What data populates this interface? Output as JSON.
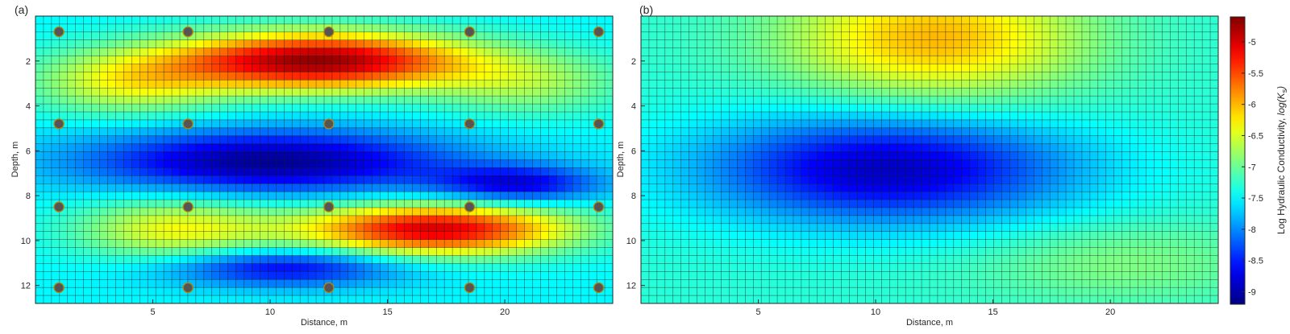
{
  "chart_data": [
    {
      "type": "heatmap",
      "panel_label": "(a)",
      "xlabel": "Distance, m",
      "ylabel": "Depth, m",
      "xlim": [
        0,
        24.6
      ],
      "ylim": [
        12.8,
        0
      ],
      "xticks": [
        5,
        10,
        15,
        20
      ],
      "yticks": [
        2,
        4,
        6,
        8,
        10,
        12
      ],
      "grid": true,
      "colormap": "jet",
      "field": {
        "background": -7.5,
        "components": [
          {
            "kind": "high",
            "x": 12.0,
            "y": 2.0,
            "peak": -4.7,
            "sx": 4.5,
            "sy": 0.9
          },
          {
            "kind": "high",
            "x": 17.0,
            "y": 9.5,
            "peak": -5.0,
            "sx": 4.0,
            "sy": 0.8
          },
          {
            "kind": "low",
            "x": 10.0,
            "y": 6.5,
            "peak": -9.1,
            "sx": 5.5,
            "sy": 1.0
          },
          {
            "kind": "low",
            "x": 20.5,
            "y": 7.5,
            "peak": -8.7,
            "sx": 2.5,
            "sy": 0.6
          },
          {
            "kind": "low",
            "x": 10.5,
            "y": 11.2,
            "peak": -8.7,
            "sx": 3.5,
            "sy": 0.6
          },
          {
            "kind": "mid",
            "x": 6.0,
            "y": 9.5,
            "peak": -6.4,
            "sx": 3.0,
            "sy": 1.0
          },
          {
            "kind": "mid",
            "x": 4.0,
            "y": 3.0,
            "peak": -6.5,
            "sx": 3.0,
            "sy": 1.0
          },
          {
            "kind": "mid",
            "x": 21.0,
            "y": 3.0,
            "peak": -6.8,
            "sx": 3.0,
            "sy": 1.0
          }
        ]
      },
      "sensor_points": {
        "x": [
          1.0,
          6.5,
          12.5,
          18.5,
          24.0
        ],
        "y": [
          0.7,
          4.8,
          8.5,
          12.1
        ],
        "fill": "#555555",
        "edge": "#b8860b"
      }
    },
    {
      "type": "heatmap",
      "panel_label": "(b)",
      "xlabel": "Distance, m",
      "ylabel": "Depth, m",
      "xlim": [
        0,
        24.6
      ],
      "ylim": [
        12.8,
        0
      ],
      "xticks": [
        5,
        10,
        15,
        20
      ],
      "yticks": [
        2,
        4,
        6,
        8,
        10,
        12
      ],
      "grid": true,
      "colormap": "jet",
      "field": {
        "background": -7.3,
        "components": [
          {
            "kind": "high",
            "x": 12.5,
            "y": 1.0,
            "peak": -6.0,
            "sx": 4.5,
            "sy": 2.0
          },
          {
            "kind": "low",
            "x": 10.5,
            "y": 6.8,
            "peak": -8.9,
            "sx": 5.5,
            "sy": 1.7
          },
          {
            "kind": "mid",
            "x": 20.5,
            "y": 11.0,
            "peak": -6.9,
            "sx": 4.5,
            "sy": 1.3
          }
        ]
      },
      "colorbar": {
        "label_plain": "Log  Hydraulic Conductivity, ",
        "label_italic": "log(K",
        "label_sub": "s",
        "label_close": ")",
        "range": [
          -9.2,
          -4.6
        ],
        "ticks": [
          -9,
          -8.5,
          -8,
          -7.5,
          -7,
          -6.5,
          -6,
          -5.5,
          -5
        ]
      }
    }
  ]
}
